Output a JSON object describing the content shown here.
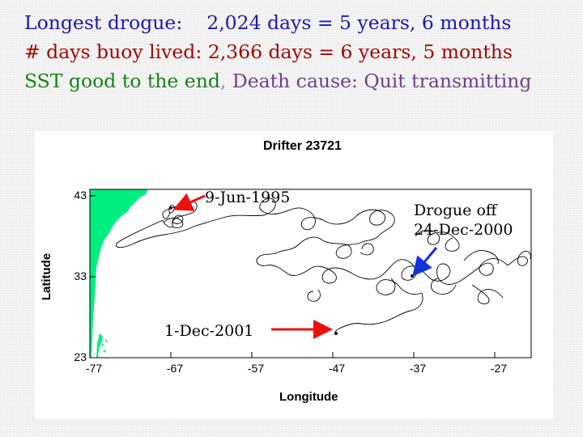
{
  "header": {
    "line1_a": "Longest drogue:",
    "line1_b": "2,024 days = 5 years, 6 months",
    "line2": "# days buoy lived: 2,366 days = 6 years, 5 months",
    "line3_green": "SST good to the end",
    "line3_sep": ",",
    "line3_purple": "Death cause: Quit transmitting"
  },
  "figure": {
    "title": "Drifter 23721",
    "xlabel": "Longitude",
    "ylabel": "Latitude",
    "xticks": [
      "-77",
      "-67",
      "-57",
      "-47",
      "-37",
      "-27"
    ],
    "yticks": [
      "43",
      "33",
      "23"
    ],
    "annotations": {
      "deployed": "9-Jun-1995",
      "last_fix": "1-Dec-2001",
      "drogue_line1": "Drogue off",
      "drogue_line2": "24-Dec-2000"
    },
    "colors": {
      "land": "#00ee80",
      "arrow": "#ee1111",
      "drogue_arrow": "#1133dd",
      "track": "#000000"
    }
  }
}
